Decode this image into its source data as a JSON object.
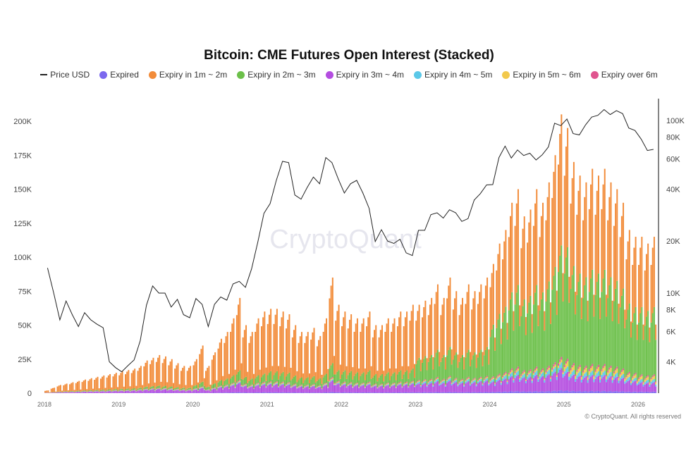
{
  "chart_data": {
    "type": "bar",
    "title": "Bitcoin: CME Futures Open Interest (Stacked)",
    "legend_position": "top",
    "grid": false,
    "watermark": "CryptoQuant",
    "copyright": "© CryptoQuant. All rights reserved",
    "x_ticks": [
      "2018",
      "2019",
      "2020",
      "2021",
      "2022",
      "2023",
      "2024",
      "2025",
      "2026"
    ],
    "x_range": [
      "2018-01",
      "2026-03"
    ],
    "left_axis": {
      "ticks": [
        "0",
        "25K",
        "50K",
        "75K",
        "100K",
        "125K",
        "150K",
        "175K",
        "200K"
      ],
      "tick_values": [
        0,
        25000,
        50000,
        75000,
        100000,
        125000,
        150000,
        175000,
        200000
      ],
      "range": [
        0,
        200000
      ]
    },
    "right_axis": {
      "scale": "log",
      "ticks": [
        "4K",
        "6K",
        "8K",
        "10K",
        "20K",
        "40K",
        "60K",
        "80K",
        "100K"
      ],
      "tick_values": [
        4000,
        6000,
        8000,
        10000,
        20000,
        40000,
        60000,
        80000,
        100000
      ]
    },
    "months_start": "2018-01",
    "total_open_interest_monthly_peak": [
      2000,
      4000,
      6000,
      7000,
      8000,
      9000,
      10000,
      11000,
      12000,
      13000,
      14000,
      15000,
      16000,
      17000,
      18000,
      20000,
      24000,
      26000,
      28000,
      27000,
      25000,
      22000,
      20000,
      20000,
      25000,
      35000,
      20000,
      30000,
      40000,
      45000,
      55000,
      70000,
      50000,
      45000,
      55000,
      60000,
      62000,
      62000,
      60000,
      58000,
      50000,
      45000,
      45000,
      48000,
      42000,
      55000,
      85000,
      65000,
      60000,
      58000,
      55000,
      55000,
      60000,
      50000,
      50000,
      55000,
      55000,
      60000,
      60000,
      65000,
      65000,
      68000,
      70000,
      80000,
      70000,
      85000,
      75000,
      70000,
      80000,
      75000,
      80000,
      85000,
      95000,
      110000,
      120000,
      140000,
      150000,
      130000,
      135000,
      150000,
      140000,
      155000,
      175000,
      205000,
      195000,
      170000,
      160000,
      155000,
      165000,
      160000,
      165000,
      155000,
      150000,
      140000,
      120000,
      115000,
      115000,
      110000,
      115000
    ],
    "price_usd_monthly": [
      14000,
      10000,
      7000,
      9000,
      7500,
      6400,
      7700,
      7000,
      6600,
      6300,
      4000,
      3700,
      3500,
      3800,
      4100,
      5300,
      8500,
      11000,
      10000,
      10000,
      8300,
      9200,
      7500,
      7200,
      9300,
      8600,
      6400,
      8600,
      9500,
      9100,
      11300,
      11700,
      10800,
      13800,
      19700,
      29000,
      33000,
      45000,
      58000,
      57000,
      37000,
      35000,
      41000,
      47000,
      43000,
      61000,
      57000,
      46000,
      38000,
      43000,
      45000,
      38000,
      31000,
      19900,
      23300,
      20000,
      19400,
      20500,
      17100,
      16500,
      23100,
      23100,
      28500,
      29200,
      27200,
      30400,
      29200,
      26000,
      27000,
      34600,
      37700,
      42300,
      42500,
      61000,
      71000,
      60600,
      67500,
      62700,
      64600,
      59000,
      63300,
      70200,
      96400,
      93400,
      102000,
      84000,
      82500,
      94200,
      104600,
      107100,
      115700,
      108200,
      114000,
      109500,
      90400,
      87500,
      78000,
      67000,
      68000
    ],
    "series": [
      {
        "name": "Price USD",
        "color": "#222222",
        "type": "line"
      },
      {
        "name": "Expired",
        "color": "#7b68ee",
        "share_by_year": [
          0.01,
          0.01,
          0.01,
          0.01,
          0.01,
          0.01,
          0.01,
          0.01,
          0.01
        ]
      },
      {
        "name": "Expiry in 1m ~ 2m",
        "color": "#f28c3a",
        "share_by_year": [
          0.8,
          0.8,
          0.76,
          0.74,
          0.72,
          0.6,
          0.47,
          0.45,
          0.45
        ]
      },
      {
        "name": "Expiry in 2m ~ 3m",
        "color": "#6cc04a",
        "share_by_year": [
          0.06,
          0.06,
          0.1,
          0.12,
          0.14,
          0.25,
          0.4,
          0.42,
          0.43
        ]
      },
      {
        "name": "Expiry in 3m ~ 4m",
        "color": "#b44de0",
        "share_by_year": [
          0.1,
          0.1,
          0.1,
          0.1,
          0.1,
          0.1,
          0.08,
          0.07,
          0.06
        ]
      },
      {
        "name": "Expiry in 4m ~ 5m",
        "color": "#5bc8e8",
        "share_by_year": [
          0.01,
          0.01,
          0.01,
          0.01,
          0.01,
          0.02,
          0.02,
          0.02,
          0.02
        ]
      },
      {
        "name": "Expiry in 5m ~ 6m",
        "color": "#f2c94c",
        "share_by_year": [
          0.01,
          0.01,
          0.01,
          0.01,
          0.01,
          0.01,
          0.01,
          0.02,
          0.02
        ]
      },
      {
        "name": "Expiry over 6m",
        "color": "#e0558f",
        "share_by_year": [
          0.01,
          0.01,
          0.01,
          0.01,
          0.01,
          0.01,
          0.01,
          0.01,
          0.01
        ]
      }
    ]
  }
}
